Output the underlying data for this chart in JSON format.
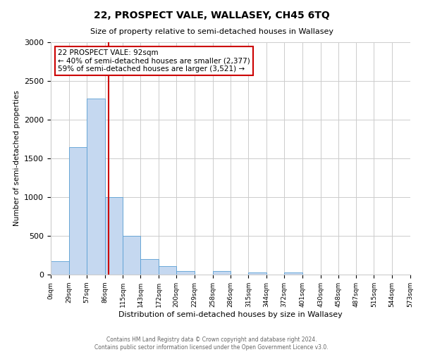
{
  "title": "22, PROSPECT VALE, WALLASEY, CH45 6TQ",
  "subtitle": "Size of property relative to semi-detached houses in Wallasey",
  "xlabel": "Distribution of semi-detached houses by size in Wallasey",
  "ylabel": "Number of semi-detached properties",
  "bin_edges": [
    0,
    29,
    57,
    86,
    115,
    143,
    172,
    200,
    229,
    258,
    286,
    315,
    344,
    372,
    401,
    430,
    458,
    487,
    515,
    544,
    573
  ],
  "counts": [
    175,
    1650,
    2275,
    1000,
    500,
    200,
    110,
    50,
    0,
    50,
    0,
    30,
    0,
    30,
    0,
    0,
    0,
    0,
    0,
    0
  ],
  "bar_color": "#c5d8f0",
  "bar_edge_color": "#5a9fd4",
  "red_line_x": 92,
  "annotation_title": "22 PROSPECT VALE: 92sqm",
  "annotation_line1": "← 40% of semi-detached houses are smaller (2,377)",
  "annotation_line2": "59% of semi-detached houses are larger (3,521) →",
  "annotation_box_color": "#ffffff",
  "annotation_box_edge": "#cc0000",
  "red_line_color": "#cc0000",
  "ylim": [
    0,
    3000
  ],
  "yticks": [
    0,
    500,
    1000,
    1500,
    2000,
    2500,
    3000
  ],
  "tick_labels": [
    "0sqm",
    "29sqm",
    "57sqm",
    "86sqm",
    "115sqm",
    "143sqm",
    "172sqm",
    "200sqm",
    "229sqm",
    "258sqm",
    "286sqm",
    "315sqm",
    "344sqm",
    "372sqm",
    "401sqm",
    "430sqm",
    "458sqm",
    "487sqm",
    "515sqm",
    "544sqm",
    "573sqm"
  ],
  "footer1": "Contains HM Land Registry data © Crown copyright and database right 2024.",
  "footer2": "Contains public sector information licensed under the Open Government Licence v3.0.",
  "bg_color": "#ffffff",
  "grid_color": "#cccccc"
}
